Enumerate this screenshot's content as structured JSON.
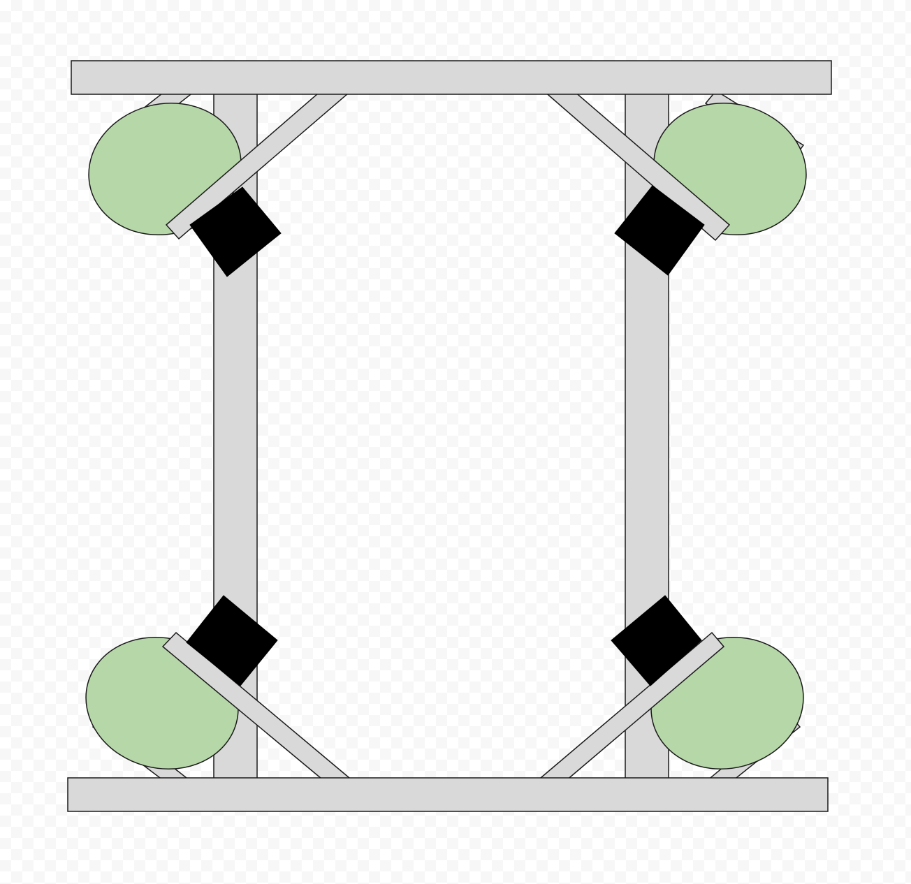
{
  "colors": {
    "frame": "#d9d9d9",
    "outline": "#1a1a1a",
    "pad": "#b6d7a8",
    "block": "#000000"
  },
  "parts": {
    "rails": [
      "top-rail",
      "bottom-rail"
    ],
    "posts": [
      "left-post",
      "right-post"
    ],
    "corners": [
      "top-left",
      "top-right",
      "bottom-left",
      "bottom-right"
    ]
  }
}
